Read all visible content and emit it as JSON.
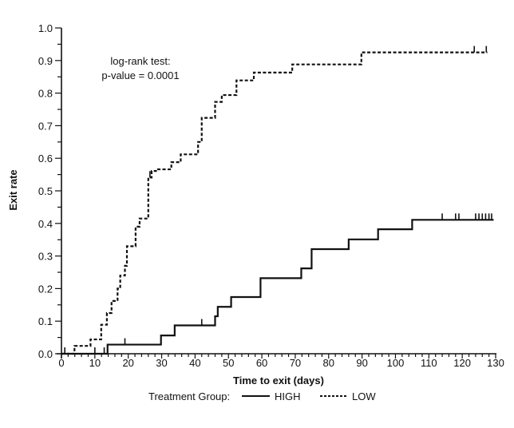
{
  "chart_data": {
    "type": "line",
    "subtype": "step (Kaplan-Meier cumulative incidence)",
    "xlabel": "Time to exit (days)",
    "ylabel": "Exit rate",
    "xlim": [
      0,
      130
    ],
    "ylim": [
      0,
      1.0
    ],
    "xticks": [
      "0",
      "10",
      "20",
      "30",
      "40",
      "50",
      "60",
      "70",
      "80",
      "90",
      "100",
      "110",
      "120",
      "130"
    ],
    "yticks": [
      "0.0",
      "0.1",
      "0.2",
      "0.3",
      "0.4",
      "0.5",
      "0.6",
      "0.7",
      "0.8",
      "0.9",
      "1.0"
    ],
    "grid": false,
    "annotation": [
      "log-rank test:",
      "p-value = 0.0001"
    ],
    "legend": {
      "title": "Treatment Group:",
      "placement": "bottom"
    },
    "series": [
      {
        "name": "HIGH",
        "style": "solid",
        "color": "#111111",
        "steps": [
          [
            0,
            0
          ],
          [
            13.8,
            0.028
          ],
          [
            29.8,
            0.056
          ],
          [
            33.9,
            0.087
          ],
          [
            46,
            0.115
          ],
          [
            46.8,
            0.144
          ],
          [
            50.8,
            0.174
          ],
          [
            59.6,
            0.232
          ],
          [
            71.8,
            0.262
          ],
          [
            74.9,
            0.321
          ],
          [
            86,
            0.351
          ],
          [
            94.8,
            0.382
          ],
          [
            105,
            0.411
          ]
        ],
        "end": 129.4,
        "censored": [
          1,
          10,
          12.8,
          19,
          42,
          114,
          118,
          119,
          124,
          125,
          126,
          127,
          128,
          128.8
        ]
      },
      {
        "name": "LOW",
        "style": "dashed",
        "color": "#111111",
        "steps": [
          [
            0,
            0
          ],
          [
            3.9,
            0.024
          ],
          [
            8.7,
            0.044
          ],
          [
            11.9,
            0.089
          ],
          [
            13.6,
            0.125
          ],
          [
            15,
            0.162
          ],
          [
            16.8,
            0.2
          ],
          [
            17.6,
            0.24
          ],
          [
            19,
            0.27
          ],
          [
            19.6,
            0.33
          ],
          [
            22.2,
            0.39
          ],
          [
            23.4,
            0.415
          ],
          [
            26,
            0.541
          ],
          [
            27,
            0.561
          ],
          [
            28.9,
            0.566
          ],
          [
            32.9,
            0.588
          ],
          [
            35.7,
            0.612
          ],
          [
            40.9,
            0.65
          ],
          [
            42,
            0.724
          ],
          [
            46,
            0.773
          ],
          [
            48,
            0.794
          ],
          [
            52.4,
            0.839
          ],
          [
            57.6,
            0.863
          ],
          [
            69.1,
            0.888
          ],
          [
            89.8,
            0.925
          ]
        ],
        "end": 127.5,
        "censored": [
          26.5,
          123.6,
          127.2
        ]
      }
    ]
  }
}
